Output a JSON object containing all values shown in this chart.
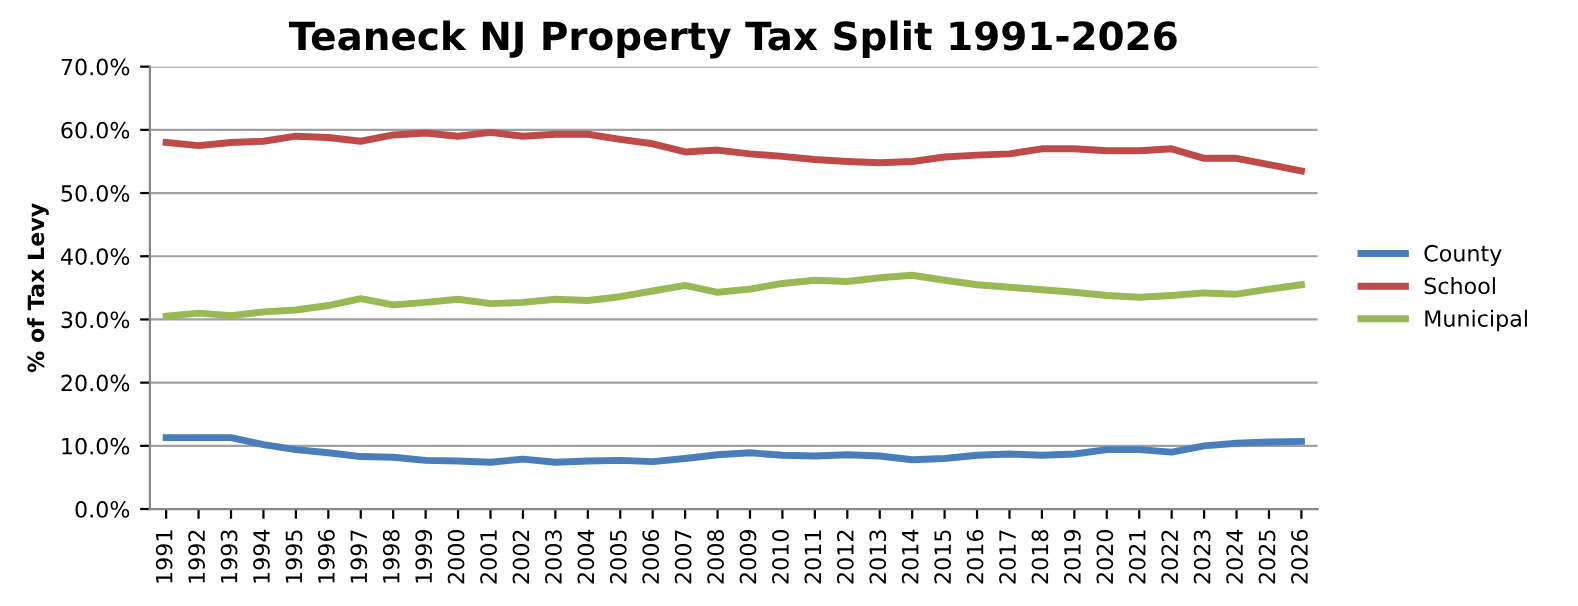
{
  "chart_data": {
    "type": "line",
    "title": "Teaneck NJ Property Tax Split 1991-2026",
    "ylabel": "% of Tax Levy",
    "categories": [
      "1991",
      "1992",
      "1993",
      "1994",
      "1995",
      "1996",
      "1997",
      "1998",
      "1999",
      "2000",
      "2001",
      "2002",
      "2003",
      "2004",
      "2005",
      "2006",
      "2007",
      "2008",
      "2009",
      "2010",
      "2011",
      "2012",
      "2013",
      "2014",
      "2015",
      "2016",
      "2017",
      "2018",
      "2019",
      "2020",
      "2021",
      "2022",
      "2023",
      "2024",
      "2025",
      "2026"
    ],
    "series": [
      {
        "name": "County",
        "color": "#4a7ebb",
        "values": [
          11.3,
          11.3,
          11.3,
          10.2,
          9.4,
          8.9,
          8.3,
          8.2,
          7.7,
          7.6,
          7.4,
          7.9,
          7.4,
          7.6,
          7.7,
          7.5,
          8.0,
          8.6,
          8.9,
          8.5,
          8.4,
          8.6,
          8.4,
          7.8,
          8.0,
          8.5,
          8.7,
          8.5,
          8.7,
          9.4,
          9.4,
          9.0,
          10.0,
          10.4,
          10.6,
          10.7
        ]
      },
      {
        "name": "School",
        "color": "#be4b48",
        "values": [
          58.0,
          57.5,
          58.0,
          58.2,
          59.0,
          58.8,
          58.2,
          59.2,
          59.5,
          59.0,
          59.6,
          59.0,
          59.3,
          59.3,
          58.5,
          57.8,
          56.5,
          56.8,
          56.2,
          55.8,
          55.3,
          55.0,
          54.8,
          55.0,
          55.7,
          56.0,
          56.2,
          57.0,
          57.0,
          56.7,
          56.7,
          57.0,
          55.5,
          55.5,
          54.5,
          53.5
        ]
      },
      {
        "name": "Municipal",
        "color": "#98b954",
        "values": [
          30.5,
          31.0,
          30.6,
          31.2,
          31.5,
          32.2,
          33.3,
          32.3,
          32.7,
          33.2,
          32.5,
          32.7,
          33.2,
          33.0,
          33.6,
          34.5,
          35.4,
          34.3,
          34.8,
          35.7,
          36.2,
          36.0,
          36.6,
          37.0,
          36.2,
          35.5,
          35.1,
          34.7,
          34.3,
          33.8,
          33.5,
          33.8,
          34.2,
          34.0,
          34.8,
          35.5
        ]
      }
    ],
    "ylim": [
      0,
      70
    ],
    "yticks": [
      {
        "value": 0,
        "label": "0.0%"
      },
      {
        "value": 10,
        "label": "10.0%"
      },
      {
        "value": 20,
        "label": "20.0%"
      },
      {
        "value": 30,
        "label": "30.0%"
      },
      {
        "value": 40,
        "label": "40.0%"
      },
      {
        "value": 50,
        "label": "50.0%"
      },
      {
        "value": 60,
        "label": "60.0%"
      },
      {
        "value": 70,
        "label": "70.0%"
      }
    ],
    "grid": "y",
    "legend": "right",
    "marker": "none",
    "line_style": "solid"
  }
}
